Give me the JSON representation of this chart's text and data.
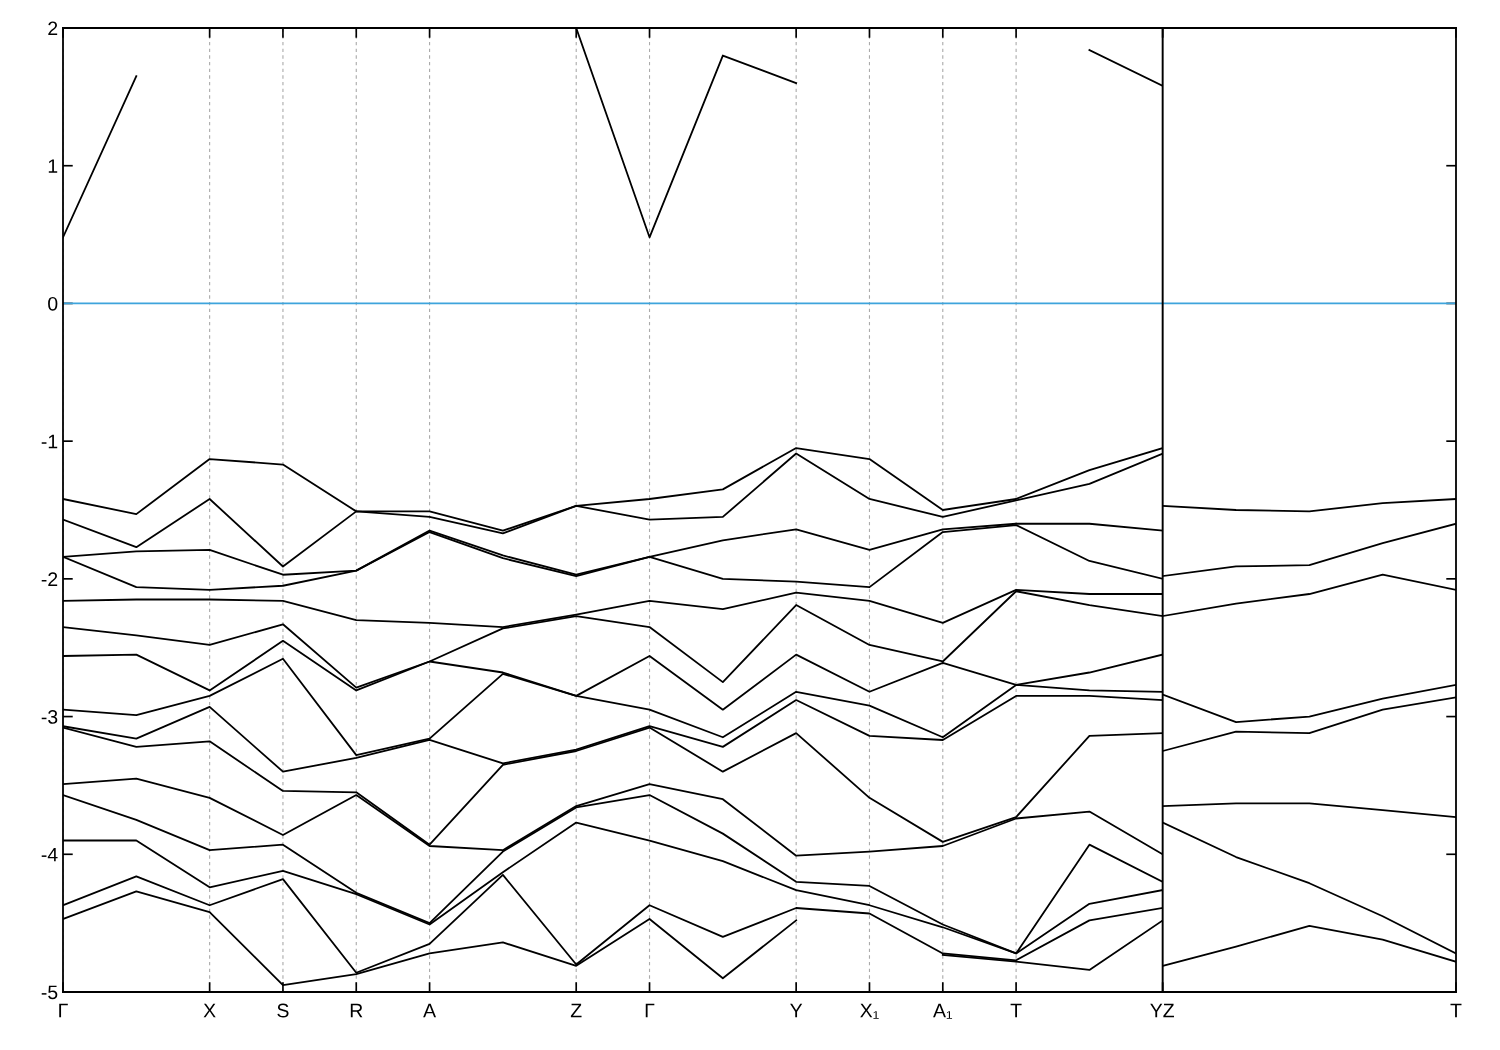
{
  "chart_data": [
    {
      "type": "line",
      "color": "#000000",
      "line_style": "solid",
      "marker": "none",
      "grid": "x",
      "legend": false,
      "categories": [
        "Γ",
        null,
        "X",
        "S",
        "R",
        "A",
        null,
        "Z",
        "Γ",
        null,
        "Y",
        "X₁",
        "A₁",
        "T",
        null,
        "Y"
      ],
      "ylim": [
        -5,
        2
      ],
      "yticks": [
        -5,
        -4,
        -3,
        -2,
        -1,
        0,
        1,
        2
      ],
      "ref_lines": [
        {
          "axis": "y",
          "value": 0,
          "color": "#3ea4dc",
          "line_style": "solid"
        }
      ],
      "series": [
        {
          "values": [
            -1.42,
            -1.53,
            -1.13,
            -1.17,
            -1.51,
            -1.51,
            -1.65,
            -1.47,
            -1.42,
            -1.35,
            -1.05,
            -1.13,
            -1.5,
            -1.42,
            -1.21,
            -1.05
          ]
        },
        {
          "values": [
            -1.57,
            -1.77,
            -1.42,
            -1.91,
            -1.51,
            -1.55,
            -1.67,
            -1.47,
            -1.57,
            -1.55,
            -1.09,
            -1.42,
            -1.55,
            -1.43,
            -1.31,
            -1.09
          ]
        },
        {
          "values": [
            -1.84,
            -1.8,
            -1.79,
            -1.97,
            -1.94,
            -1.65,
            -1.83,
            -1.97,
            -1.84,
            -1.72,
            -1.64,
            -1.79,
            -1.64,
            -1.6,
            -1.6,
            -1.65
          ]
        },
        {
          "values": [
            -1.84,
            -2.06,
            -2.08,
            -2.05,
            -1.94,
            -1.66,
            -1.85,
            -1.98,
            -1.84,
            -2.0,
            -2.02,
            -2.06,
            -1.66,
            -1.61,
            -1.87,
            -2.0
          ]
        },
        {
          "values": [
            -2.16,
            -2.15,
            -2.15,
            -2.16,
            -2.3,
            -2.32,
            -2.35,
            -2.26,
            -2.16,
            -2.22,
            -2.1,
            -2.16,
            -2.32,
            -2.08,
            -2.11,
            -2.11
          ]
        },
        {
          "values": [
            -2.35,
            -2.41,
            -2.48,
            -2.33,
            -2.79,
            -2.6,
            -2.36,
            -2.27,
            -2.35,
            -2.75,
            -2.19,
            -2.48,
            -2.6,
            -2.09,
            -2.19,
            -2.27
          ]
        },
        {
          "values": [
            -2.56,
            -2.55,
            -2.81,
            -2.45,
            -2.81,
            -2.6,
            -2.68,
            -2.85,
            -2.56,
            -2.95,
            -2.55,
            -2.82,
            -2.61,
            -2.77,
            -2.68,
            -2.55
          ]
        },
        {
          "values": [
            -2.95,
            -2.99,
            -2.85,
            -2.58,
            -3.28,
            -3.16,
            -2.69,
            -2.85,
            -2.95,
            -3.15,
            -2.82,
            -2.92,
            -3.15,
            -2.77,
            -2.81,
            -2.82
          ]
        },
        {
          "values": [
            -3.07,
            -3.16,
            -2.93,
            -3.4,
            -3.3,
            -3.17,
            -3.34,
            -3.24,
            -3.07,
            -3.22,
            -2.88,
            -3.14,
            -3.17,
            -2.85,
            -2.85,
            -2.88
          ]
        },
        {
          "values": [
            -3.08,
            -3.22,
            -3.18,
            -3.54,
            -3.55,
            -3.93,
            -3.35,
            -3.25,
            -3.08,
            -3.4,
            -3.12,
            -3.59,
            -3.91,
            -3.73,
            -3.14,
            -3.12
          ]
        },
        {
          "values": [
            -3.49,
            -3.45,
            -3.59,
            -3.86,
            -3.57,
            -3.94,
            -3.97,
            -3.65,
            -3.49,
            -3.6,
            -4.01,
            -3.98,
            -3.94,
            -3.74,
            -3.69,
            -4.0
          ]
        },
        {
          "values": [
            -3.57,
            -3.75,
            -3.97,
            -3.93,
            -4.28,
            -4.5,
            -3.98,
            -3.66,
            -3.57,
            -3.85,
            -4.2,
            -4.23,
            -4.51,
            -4.72,
            -3.93,
            -4.2
          ]
        },
        {
          "values": [
            -3.9,
            -3.9,
            -4.24,
            -4.12,
            -4.29,
            -4.51,
            -4.13,
            -3.77,
            -3.9,
            -4.05,
            -4.26,
            -4.37,
            -4.53,
            -4.72,
            -4.36,
            -4.26
          ]
        },
        {
          "values": [
            -4.37,
            -4.16,
            -4.37,
            -4.18,
            -4.86,
            -4.65,
            -4.15,
            -4.8,
            -4.37,
            -4.6,
            -4.39,
            -4.43,
            -4.72,
            -4.77,
            -4.48,
            -4.39
          ]
        },
        {
          "values": [
            -4.47,
            -4.27,
            -4.42,
            -4.95,
            -4.87,
            -4.72,
            -4.64,
            -4.81,
            -4.47,
            -4.9,
            -4.48,
            null,
            -4.73,
            -4.78,
            -4.84,
            -4.48
          ]
        },
        {
          "values": [
            0.48,
            1.65,
            null,
            null,
            null,
            null,
            null,
            2.0,
            0.48,
            1.8,
            1.6,
            null,
            null,
            null,
            1.84,
            1.58
          ]
        }
      ]
    },
    {
      "type": "line",
      "color": "#000000",
      "line_style": "solid",
      "marker": "none",
      "legend": false,
      "tick_labels": "x",
      "categories": [
        "Z",
        null,
        null,
        null,
        "T"
      ],
      "ylim": [
        -5,
        2
      ],
      "yticks": [
        -5,
        -4,
        -3,
        -2,
        -1,
        0,
        1,
        2
      ],
      "ref_lines": [
        {
          "axis": "y",
          "value": 0,
          "color": "#3ea4dc",
          "line_style": "solid"
        }
      ],
      "series": [
        {
          "values": [
            -1.47,
            -1.5,
            -1.51,
            -1.45,
            -1.42
          ]
        },
        {
          "values": [
            -1.98,
            -1.91,
            -1.9,
            -1.74,
            -1.6
          ]
        },
        {
          "values": [
            -2.27,
            -2.18,
            -2.11,
            -1.97,
            -2.08
          ]
        },
        {
          "values": [
            -2.84,
            -3.04,
            -3.0,
            -2.87,
            -2.77
          ]
        },
        {
          "values": [
            -3.25,
            -3.11,
            -3.12,
            -2.95,
            -2.86
          ]
        },
        {
          "values": [
            -3.65,
            -3.63,
            -3.63,
            -3.68,
            -3.73
          ]
        },
        {
          "values": [
            -3.77,
            -4.02,
            -4.21,
            -4.45,
            -4.72
          ]
        },
        {
          "values": [
            -4.81,
            -4.67,
            -4.52,
            -4.62,
            -4.78
          ]
        }
      ]
    }
  ]
}
